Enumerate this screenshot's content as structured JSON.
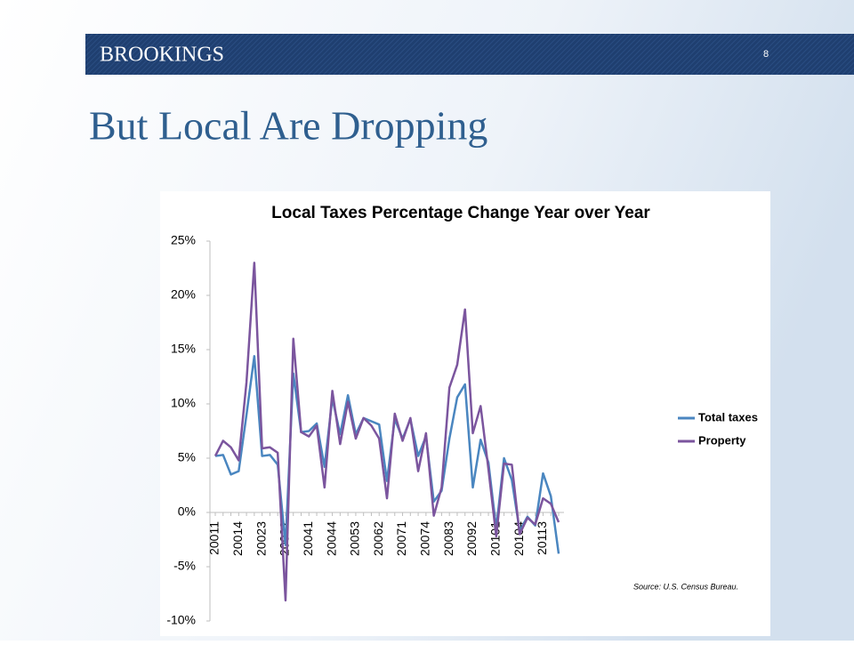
{
  "header": {
    "brand": "BROOKINGS",
    "page": "8"
  },
  "slide_title": "But Local Are Dropping",
  "chart_data": {
    "type": "line",
    "title": "Local Taxes Percentage Change Year over Year",
    "categories": [
      "20011",
      null,
      null,
      "20014",
      null,
      null,
      "20023",
      null,
      null,
      "20032",
      null,
      null,
      "20041",
      null,
      null,
      "20044",
      null,
      null,
      "20053",
      null,
      null,
      "20062",
      null,
      null,
      "20071",
      null,
      null,
      "20074",
      null,
      null,
      "20083",
      null,
      null,
      "20092",
      null,
      null,
      "20101",
      null,
      null,
      "20104",
      null,
      null,
      "20113",
      null,
      null
    ],
    "series": [
      {
        "name": "Total taxes",
        "color": "#4a86c0",
        "values": [
          5.2,
          5.3,
          3.5,
          3.8,
          9.0,
          14.4,
          5.2,
          5.3,
          4.4,
          -3.0,
          12.8,
          7.4,
          7.5,
          8.2,
          4.2,
          10.5,
          7.2,
          10.8,
          7.2,
          8.7,
          8.4,
          8.1,
          2.9,
          8.6,
          6.8,
          8.6,
          5.2,
          7.0,
          1.0,
          2.0,
          6.8,
          10.6,
          11.8,
          2.3,
          6.7,
          4.6,
          -1.5,
          5.0,
          3.0,
          -1.7,
          -0.4,
          -1.2,
          3.6,
          1.5,
          -3.8
        ]
      },
      {
        "name": "Property",
        "color": "#7b559e",
        "values": [
          5.2,
          6.6,
          6.0,
          4.8,
          12.0,
          23.0,
          5.9,
          6.0,
          5.5,
          -8.1,
          16.0,
          7.4,
          7.0,
          8.0,
          2.3,
          11.2,
          6.3,
          10.2,
          6.8,
          8.7,
          8.0,
          6.8,
          1.3,
          9.1,
          6.6,
          8.7,
          3.8,
          7.3,
          -0.3,
          2.3,
          11.5,
          13.6,
          18.7,
          7.3,
          9.8,
          4.0,
          -2.2,
          4.5,
          4.4,
          -2.0,
          -0.5,
          -1.1,
          1.3,
          0.8,
          -0.9
        ]
      }
    ],
    "ylim": [
      -10,
      25
    ],
    "yticks": [
      {
        "value": -10,
        "label": "-10%"
      },
      {
        "value": -5,
        "label": "-5%"
      },
      {
        "value": 0,
        "label": "0%"
      },
      {
        "value": 5,
        "label": "5%"
      },
      {
        "value": 10,
        "label": "10%"
      },
      {
        "value": 15,
        "label": "15%"
      },
      {
        "value": 20,
        "label": "20%"
      },
      {
        "value": 25,
        "label": "25%"
      }
    ],
    "grid": false,
    "legend": "right",
    "source": "Source:  U.S.  Census Bureau."
  }
}
